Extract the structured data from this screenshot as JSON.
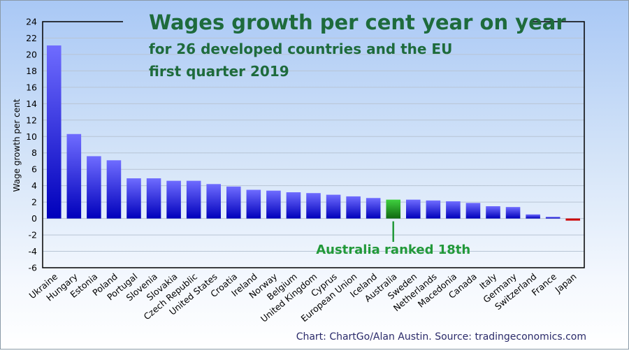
{
  "chart_data": {
    "type": "bar",
    "title": "Wages growth per cent year on year",
    "subtitle_line1": "for 26 developed countries and the EU",
    "subtitle_line2": "first quarter 2019",
    "xlabel": "",
    "ylabel": "Wage growth per cent",
    "ylim": [
      -6,
      24
    ],
    "yticks": [
      24,
      22,
      20,
      18,
      16,
      14,
      12,
      10,
      8,
      6,
      4,
      2,
      0,
      -2,
      -4,
      -6
    ],
    "grid": true,
    "categories": [
      "Ukraine",
      "Hungary",
      "Estonia",
      "Poland",
      "Portugal",
      "Slovenia",
      "Slovakia",
      "Czech Republic",
      "United States",
      "Croatia",
      "Ireland",
      "Norway",
      "Belgium",
      "United Kingdom",
      "Cyprus",
      "European Union",
      "Iceland",
      "Australia",
      "Sweden",
      "Netherlands",
      "Macedonia",
      "Canada",
      "Italy",
      "Germany",
      "Switzerland",
      "France",
      "Japan"
    ],
    "values": [
      21.1,
      10.3,
      7.6,
      7.1,
      4.9,
      4.9,
      4.6,
      4.6,
      4.2,
      3.9,
      3.5,
      3.4,
      3.2,
      3.1,
      2.9,
      2.7,
      2.5,
      2.3,
      2.3,
      2.2,
      2.1,
      1.9,
      1.5,
      1.4,
      0.5,
      0.2,
      -0.2
    ],
    "highlight": {
      "category": "Australia",
      "color": "#2f9e2f"
    },
    "negative_color": "#cc0000",
    "bar_color": "#2222dd",
    "annotation": "Australia ranked 18th",
    "source": "Chart: ChartGo/Alan Austin. Source: tradingeconomics.com",
    "title_color": "#1e6b3c",
    "annotation_color": "#22993a",
    "source_color": "#2a2a6a"
  }
}
